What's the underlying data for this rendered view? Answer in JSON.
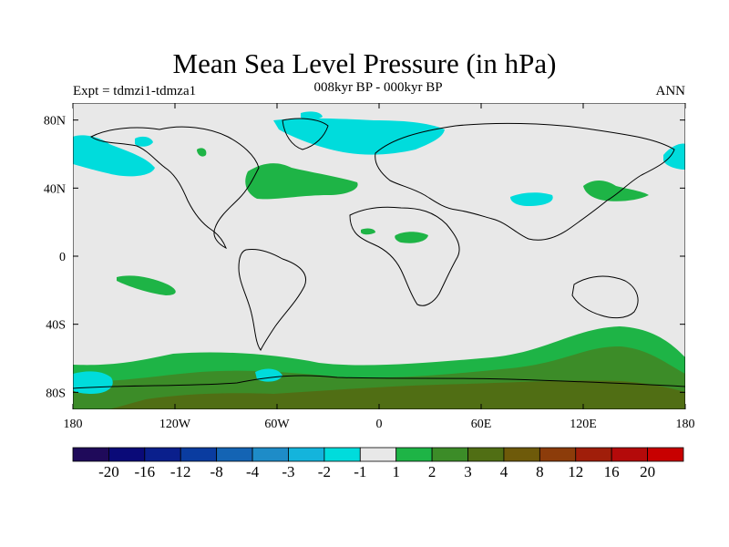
{
  "title": "Mean Sea Level Pressure (in hPa)",
  "left_label": "Expt = tdmzi1-tdmza1",
  "center_label": "008kyr BP - 000kyr BP",
  "right_label": "ANN",
  "lat_ticks": [
    "80N",
    "40N",
    "0",
    "40S",
    "80S"
  ],
  "lat_values": [
    80,
    40,
    0,
    -40,
    -80
  ],
  "lon_ticks": [
    "180",
    "120W",
    "60W",
    "0",
    "60E",
    "120E",
    "180"
  ],
  "lon_values": [
    -180,
    -120,
    -60,
    0,
    60,
    120,
    180
  ],
  "colorbar": {
    "labels": [
      "-20",
      "-16",
      "-12",
      "-8",
      "-4",
      "-3",
      "-2",
      "-1",
      "1",
      "2",
      "3",
      "4",
      "8",
      "12",
      "16",
      "20"
    ],
    "colors": [
      "#1f0a5a",
      "#0a0a78",
      "#0a1f8c",
      "#0a3ca0",
      "#1464b4",
      "#1e8cc8",
      "#14b4dc",
      "#00dcdc",
      "#e8e8e8",
      "#1eb446",
      "#3c8c28",
      "#506e14",
      "#6e5a0a",
      "#8c3c0a",
      "#a01e0a",
      "#b40a0a",
      "#c80000"
    ]
  },
  "colors": {
    "background": "#e8e8e8",
    "land_outline": "#000000"
  }
}
